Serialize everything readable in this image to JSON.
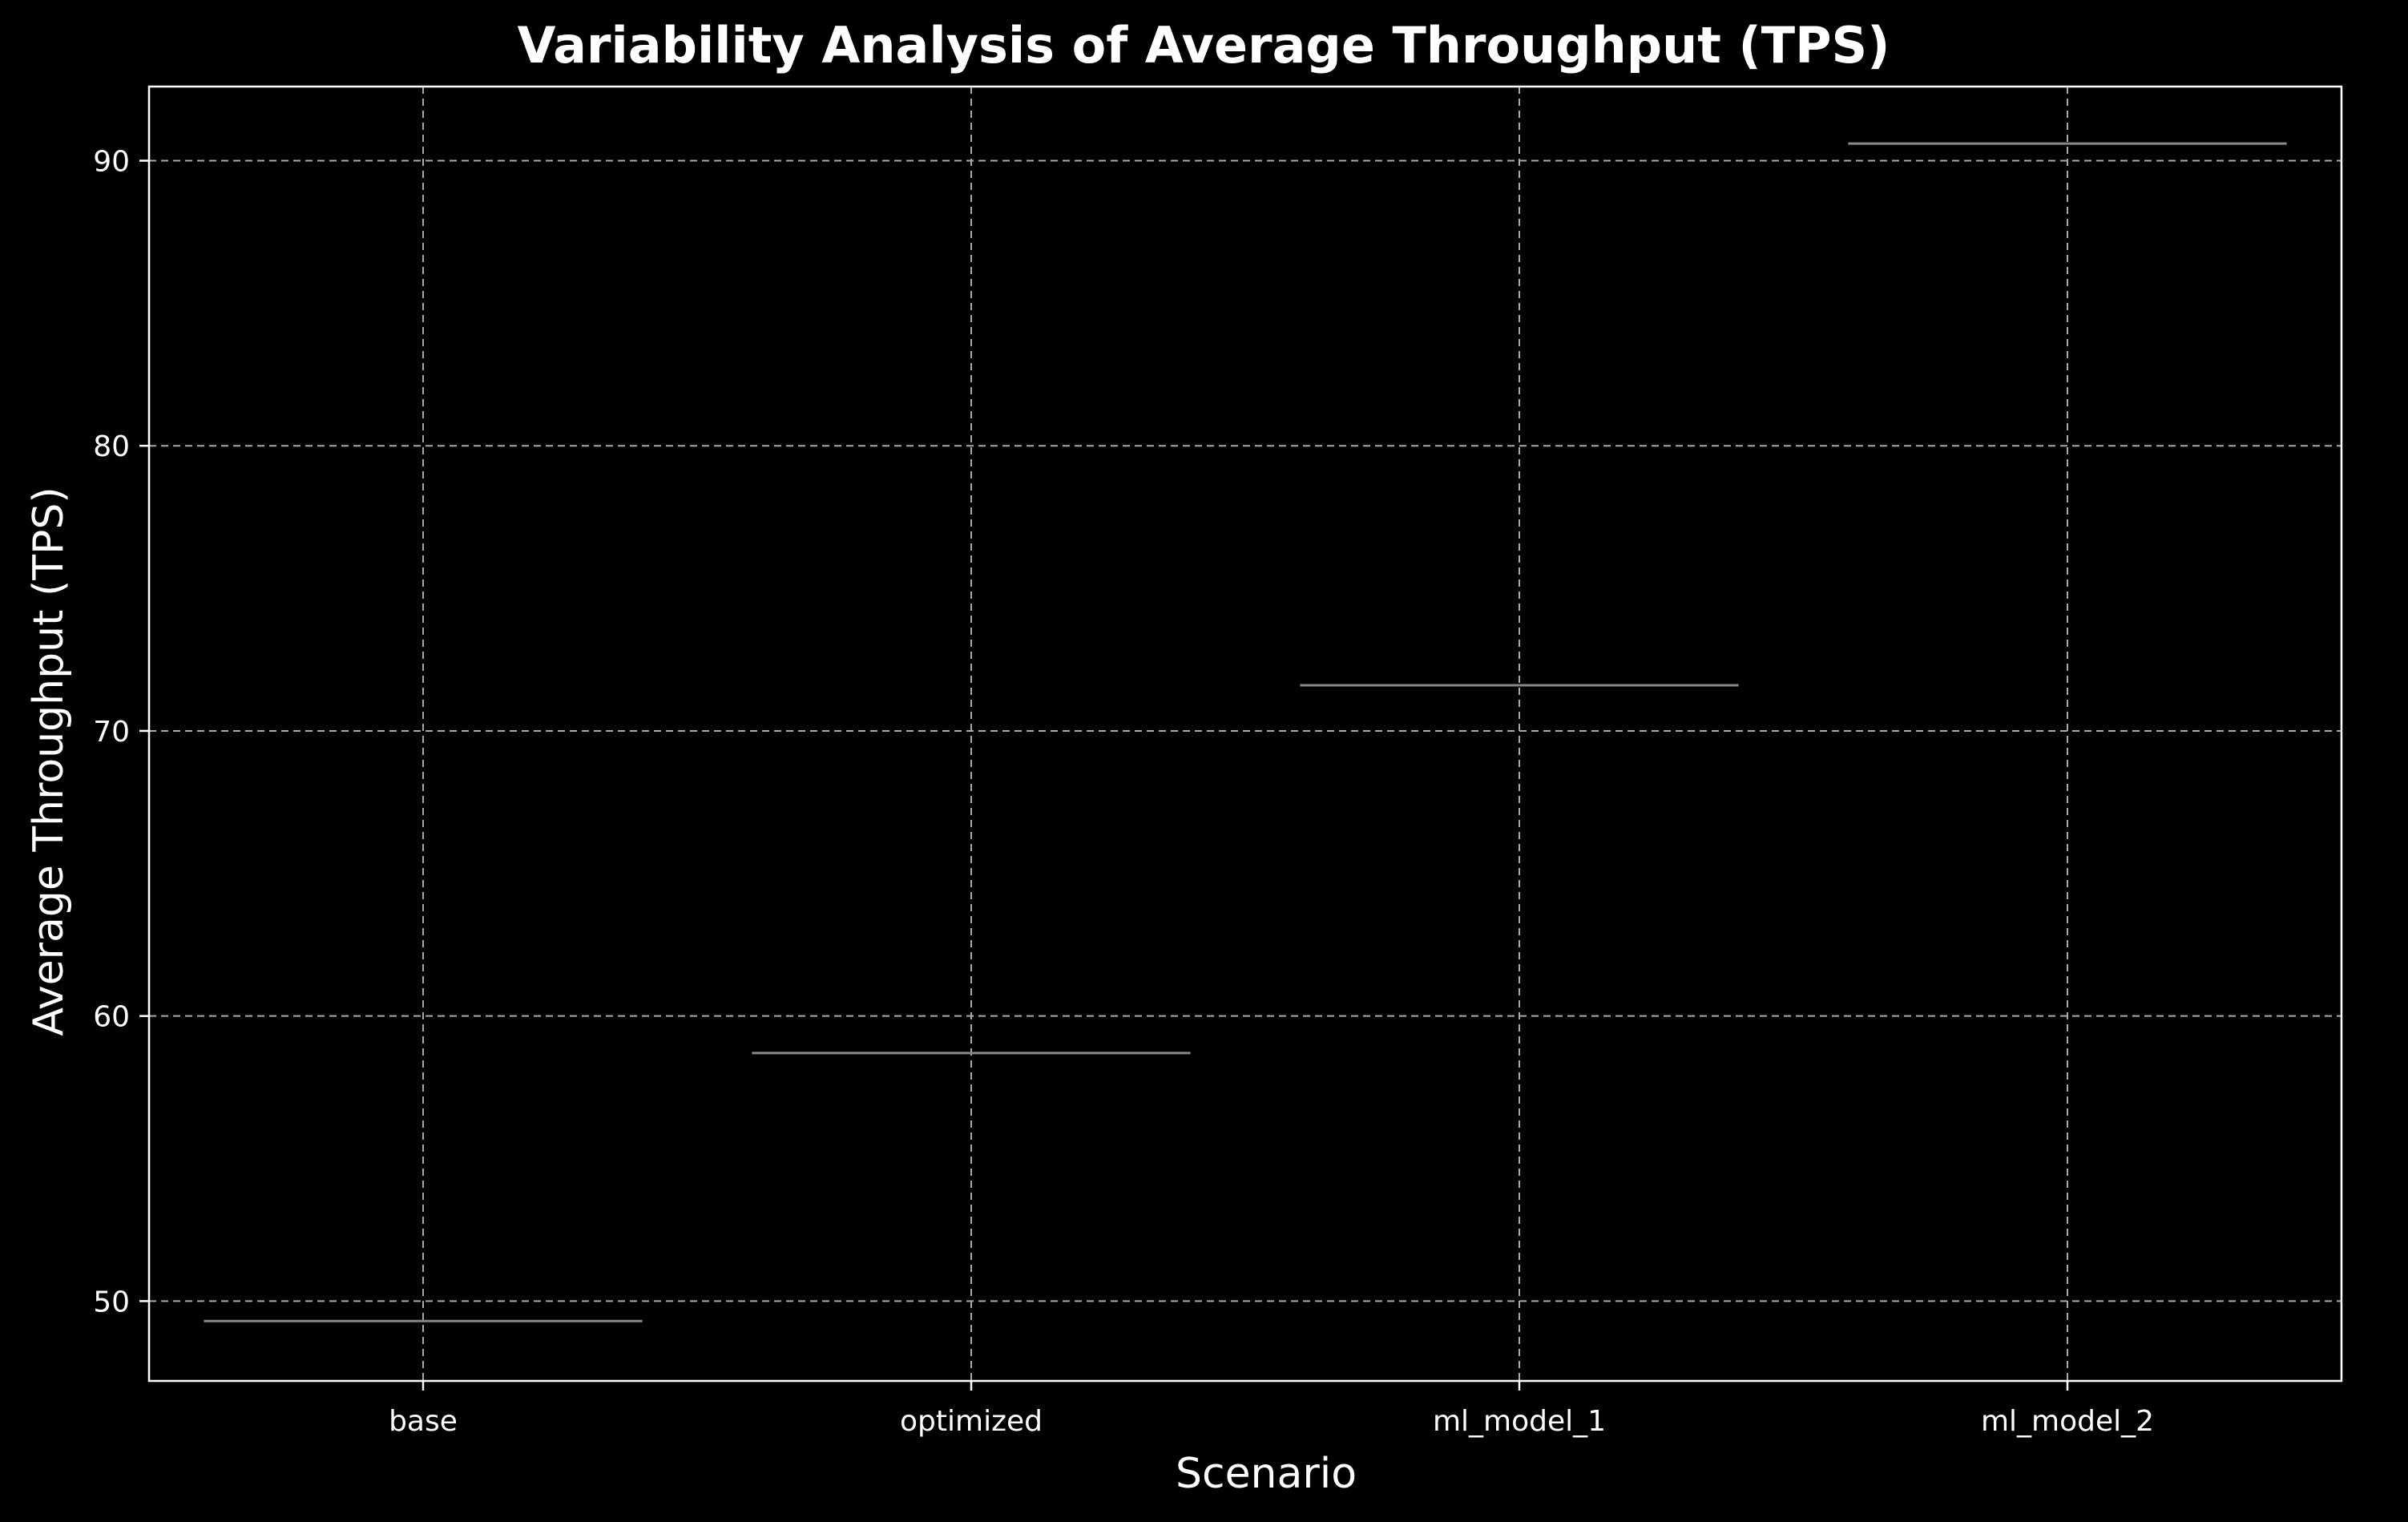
{
  "chart_data": {
    "type": "box",
    "title": "Variability Analysis of Average Throughput (TPS)",
    "xlabel": "Scenario",
    "ylabel": "Average Throughput (TPS)",
    "categories": [
      "base",
      "optimized",
      "ml_model_1",
      "ml_model_2"
    ],
    "values": [
      49.3,
      58.7,
      71.6,
      90.6
    ],
    "ylim": [
      47.2,
      92.6
    ],
    "yticks": [
      50,
      60,
      70,
      80,
      90
    ],
    "grid": true,
    "legend": "none",
    "colors": {
      "background": "#000000",
      "axes": "#ffffff",
      "grid": "#aaaaaa",
      "median_line": "#888888",
      "text": "#ffffff"
    }
  }
}
